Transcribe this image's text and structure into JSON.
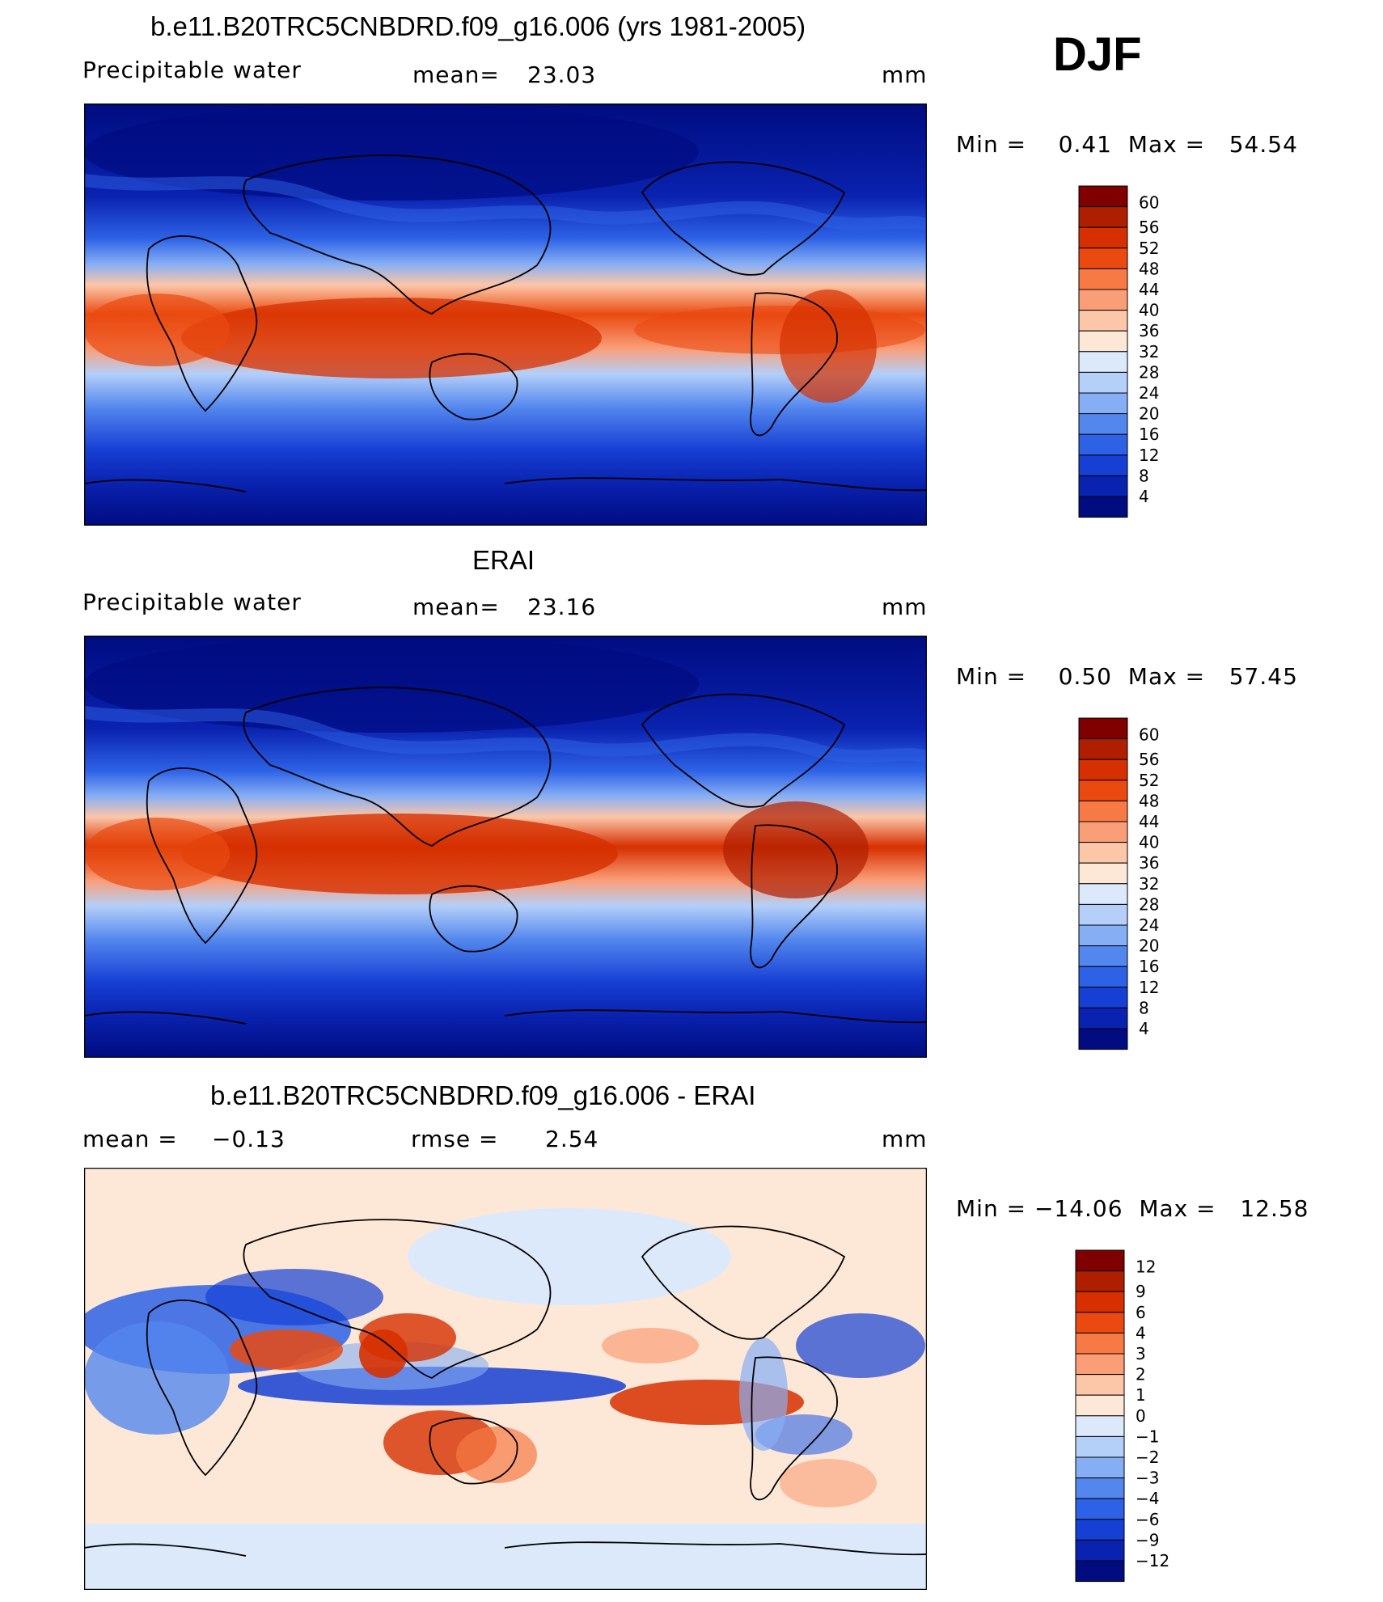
{
  "season": "DJF",
  "panels": [
    {
      "id": "model",
      "title": "b.e11.B20TRC5CNBDRD.f09_g16.006 (yrs 1981-2005)",
      "variable": "Precipitable water",
      "mean_label": "mean=",
      "mean_value": "23.03",
      "units": "mm",
      "minmax": "Min =    0.41  Max =   54.54",
      "colorbar": {
        "labels": [
          "60",
          "56",
          "52",
          "48",
          "44",
          "40",
          "36",
          "32",
          "28",
          "24",
          "20",
          "16",
          "12",
          "8",
          "4"
        ],
        "colors": [
          "#800000",
          "#b01e00",
          "#d63000",
          "#ea4a10",
          "#f77a45",
          "#fa9e78",
          "#fcc6a8",
          "#fde8d8",
          "#dce9fb",
          "#b4cff8",
          "#86aef4",
          "#5487ee",
          "#2d62e6",
          "#1640d4",
          "#0a22b0",
          "#000c80"
        ]
      }
    },
    {
      "id": "obs",
      "title": "ERAI",
      "variable": "Precipitable water",
      "mean_label": "mean=",
      "mean_value": "23.16",
      "units": "mm",
      "minmax": "Min =    0.50  Max =   57.45",
      "colorbar": {
        "labels": [
          "60",
          "56",
          "52",
          "48",
          "44",
          "40",
          "36",
          "32",
          "28",
          "24",
          "20",
          "16",
          "12",
          "8",
          "4"
        ],
        "colors": [
          "#800000",
          "#b01e00",
          "#d63000",
          "#ea4a10",
          "#f77a45",
          "#fa9e78",
          "#fcc6a8",
          "#fde8d8",
          "#dce9fb",
          "#b4cff8",
          "#86aef4",
          "#5487ee",
          "#2d62e6",
          "#1640d4",
          "#0a22b0",
          "#000c80"
        ]
      }
    },
    {
      "id": "diff",
      "title": "b.e11.B20TRC5CNBDRD.f09_g16.006 - ERAI",
      "mean_label": "mean =",
      "mean_value": "−0.13",
      "rmse_label": "rmse =",
      "rmse_value": "2.54",
      "units": "mm",
      "minmax": "Min = −14.06  Max =   12.58",
      "colorbar": {
        "labels": [
          "12",
          "9",
          "6",
          "4",
          "3",
          "2",
          "1",
          "0",
          "−1",
          "−2",
          "−3",
          "−4",
          "−6",
          "−9",
          "−12"
        ],
        "colors": [
          "#800000",
          "#b01e00",
          "#d63000",
          "#ea4a10",
          "#f77a45",
          "#fa9e78",
          "#fcc6a8",
          "#fde8d8",
          "#dce9fb",
          "#b4cff8",
          "#86aef4",
          "#5487ee",
          "#2d62e6",
          "#1640d4",
          "#0a22b0",
          "#000c80"
        ]
      }
    }
  ]
}
